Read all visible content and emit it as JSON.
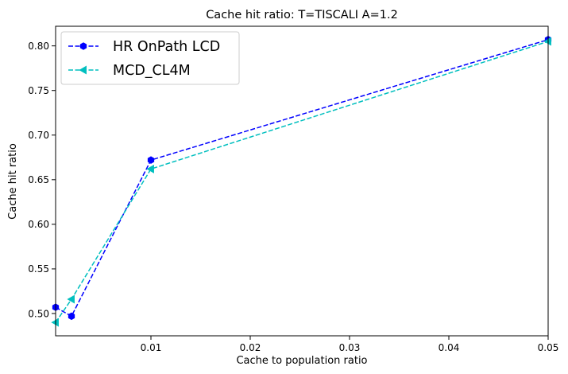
{
  "chart_data": {
    "type": "line",
    "title": "Cache hit ratio: T=TISCALI A=1.2",
    "xlabel": "Cache to population ratio",
    "ylabel": "Cache hit ratio",
    "xlim": [
      0.0004,
      0.05
    ],
    "ylim": [
      0.475,
      0.822
    ],
    "xticks": [
      0.01,
      0.02,
      0.03,
      0.04,
      0.05
    ],
    "xtick_labels": [
      "0.01",
      "0.02",
      "0.03",
      "0.04",
      "0.05"
    ],
    "yticks": [
      0.5,
      0.55,
      0.6,
      0.65,
      0.7,
      0.75,
      0.8
    ],
    "ytick_labels": [
      "0.50",
      "0.55",
      "0.60",
      "0.65",
      "0.70",
      "0.75",
      "0.80"
    ],
    "grid": false,
    "legend_position": "upper-left",
    "series": [
      {
        "name": "HR OnPath LCD",
        "color": "#0000ff",
        "marker": "hexagon",
        "linestyle": "dashed",
        "x": [
          0.0004,
          0.002,
          0.01,
          0.05
        ],
        "y": [
          0.507,
          0.497,
          0.672,
          0.807
        ]
      },
      {
        "name": "MCD_CL4M",
        "color": "#00bfbf",
        "marker": "triangle-left",
        "linestyle": "dashed",
        "x": [
          0.0004,
          0.002,
          0.01,
          0.05
        ],
        "y": [
          0.49,
          0.516,
          0.662,
          0.805
        ]
      }
    ]
  }
}
